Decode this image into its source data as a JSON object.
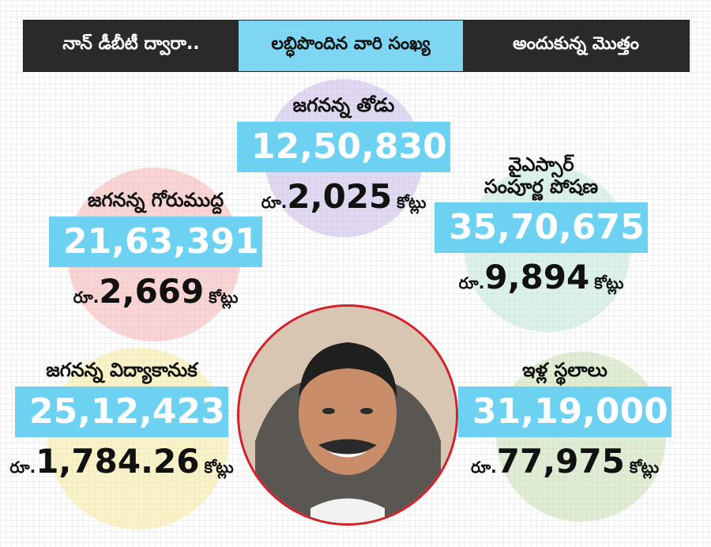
{
  "header": {
    "segment1": "నాన్ డీబీటీ ద్వారా..",
    "segment2": "లబ్ధిపొందిన వారి సంఖ్య",
    "segment3": "అందుకున్న మొత్తం",
    "colors": {
      "dark": "#2a2a2a",
      "accent": "#7fd6f3"
    }
  },
  "currency_prefix": "రూ.",
  "unit_suffix": "కోట్లు",
  "schemes": {
    "thodu": {
      "name": "జగనన్న తోడు",
      "beneficiaries": "12,50,830",
      "amount": "2,025",
      "circle_color": "#c9b9e6"
    },
    "gorumudda": {
      "name": "జగనన్న గోరుముద్ద",
      "beneficiaries": "21,63,391",
      "amount": "2,669",
      "circle_color": "#f4b3b3"
    },
    "poshana": {
      "name_line1": "వైఎస్సార్",
      "name_line2": "సంపూర్ణ పోషణ",
      "beneficiaries": "35,70,675",
      "amount": "9,894",
      "circle_color": "#bfe6d4"
    },
    "vidya": {
      "name": "జగనన్న విద్యాకానుక",
      "beneficiaries": "25,12,423",
      "amount": "1,784.26",
      "circle_color": "#f6e79a"
    },
    "illa": {
      "name": "ఇళ్ల స్థలాలు",
      "beneficiaries": "31,19,000",
      "amount": "77,975",
      "circle_color": "#c7ddb0"
    }
  }
}
